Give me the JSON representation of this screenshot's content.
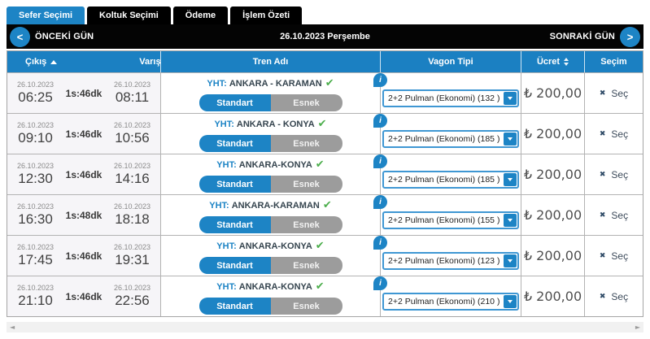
{
  "tabs": [
    {
      "label": "Sefer Seçimi",
      "active": true
    },
    {
      "label": "Koltuk Seçimi",
      "active": false
    },
    {
      "label": "Ödeme",
      "active": false
    },
    {
      "label": "İşlem Özeti",
      "active": false
    }
  ],
  "date_nav": {
    "prev_icon": "<",
    "prev_label": "ÖNCEKİ GÜN",
    "date_label": "26.10.2023 Perşembe",
    "next_label": "SONRAKİ GÜN",
    "next_icon": ">"
  },
  "table": {
    "headers": {
      "depart": "Çıkış",
      "arrive": "Varış",
      "train": "Tren Adı",
      "wagon": "Vagon Tipi",
      "price": "Ücret",
      "select": "Seçim"
    },
    "labels": {
      "train_prefix": "YHT:",
      "check_icon": "✔",
      "info_icon": "i",
      "standard": "Standart",
      "flex": "Esnek",
      "select_icon": "✖",
      "select": "Seç"
    },
    "rows": [
      {
        "dep_date": "26.10.2023",
        "dep_time": "06:25",
        "duration": "1s:46dk",
        "arr_date": "26.10.2023",
        "arr_time": "08:11",
        "train": "ANKARA - KARAMAN",
        "wagon": "2+2 Pulman (Ekonomi) (132 )",
        "price": "₺ 200,00"
      },
      {
        "dep_date": "26.10.2023",
        "dep_time": "09:10",
        "duration": "1s:46dk",
        "arr_date": "26.10.2023",
        "arr_time": "10:56",
        "train": "ANKARA - KONYA",
        "wagon": "2+2 Pulman (Ekonomi) (185 )",
        "price": "₺ 200,00"
      },
      {
        "dep_date": "26.10.2023",
        "dep_time": "12:30",
        "duration": "1s:46dk",
        "arr_date": "26.10.2023",
        "arr_time": "14:16",
        "train": "ANKARA-KONYA",
        "wagon": "2+2 Pulman (Ekonomi) (185 )",
        "price": "₺ 200,00"
      },
      {
        "dep_date": "26.10.2023",
        "dep_time": "16:30",
        "duration": "1s:48dk",
        "arr_date": "26.10.2023",
        "arr_time": "18:18",
        "train": "ANKARA-KARAMAN",
        "wagon": "2+2 Pulman (Ekonomi) (155 )",
        "price": "₺ 200,00"
      },
      {
        "dep_date": "26.10.2023",
        "dep_time": "17:45",
        "duration": "1s:46dk",
        "arr_date": "26.10.2023",
        "arr_time": "19:31",
        "train": "ANKARA-KONYA",
        "wagon": "2+2 Pulman (Ekonomi) (123 )",
        "price": "₺ 200,00"
      },
      {
        "dep_date": "26.10.2023",
        "dep_time": "21:10",
        "duration": "1s:46dk",
        "arr_date": "26.10.2023",
        "arr_time": "22:56",
        "train": "ANKARA-KONYA",
        "wagon": "2+2 Pulman (Ekonomi) (210 )",
        "price": "₺ 200,00"
      }
    ]
  },
  "scrollbar": {
    "left_arrow": "◄",
    "right_arrow": "►"
  },
  "colors": {
    "accent_blue": "#1d84c5",
    "header_blue": "#1b80c2",
    "tab_inactive_black": "#000000",
    "flex_gray": "#9c9c9c",
    "success_green": "#4cae4c"
  }
}
